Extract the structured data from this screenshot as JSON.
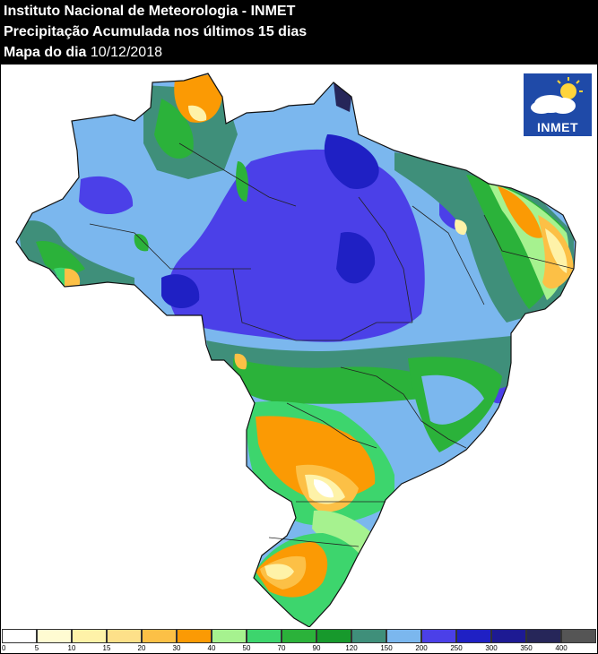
{
  "header": {
    "line1": "Instituto Nacional de Meteorologia - INMET",
    "line2": "Precipitação Acumulada nos últimos 15 dias",
    "line3_prefix": "Mapa do dia ",
    "date": "10/12/2018"
  },
  "logo": {
    "text": "INMET",
    "icon": "sun-cloud-icon"
  },
  "legend": {
    "ticks": [
      "0",
      "5",
      "10",
      "15",
      "20",
      "30",
      "40",
      "50",
      "70",
      "90",
      "120",
      "150",
      "200",
      "250",
      "300",
      "350",
      "400"
    ],
    "colors": [
      "#ffffff",
      "#fffbd2",
      "#fef2a8",
      "#fde089",
      "#fcc046",
      "#fb9a04",
      "#a6f28f",
      "#3dd56d",
      "#2bb23a",
      "#17992c",
      "#3f8f7a",
      "#7bb7ee",
      "#4b40e8",
      "#1f20c4",
      "#1d1a93",
      "#262659",
      "#555555"
    ]
  }
}
